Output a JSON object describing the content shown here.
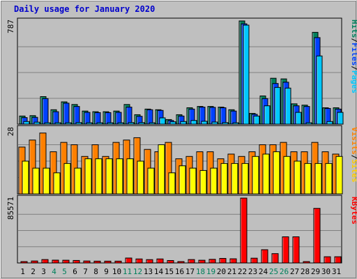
{
  "chart_data": {
    "type": "bar",
    "title": "Daily usage for January 2020",
    "categories": [
      "1",
      "2",
      "3",
      "4",
      "5",
      "6",
      "7",
      "8",
      "9",
      "10",
      "11",
      "12",
      "13",
      "14",
      "15",
      "16",
      "17",
      "18",
      "19",
      "20",
      "21",
      "22",
      "23",
      "24",
      "25",
      "26",
      "27",
      "28",
      "29",
      "30",
      "31"
    ],
    "weekend_days": [
      "4",
      "5",
      "11",
      "12",
      "18",
      "19",
      "25",
      "26"
    ],
    "panels": [
      {
        "name": "requests",
        "ymax_label": "787",
        "ymax": 787,
        "series": [
          {
            "name": "Hits",
            "color": "#00805c",
            "values": [
              62,
              65,
              210,
              110,
              170,
              150,
              100,
              95,
              95,
              100,
              150,
              72,
              115,
              110,
              35,
              72,
              125,
              135,
              135,
              130,
              110,
              787,
              82,
              215,
              350,
              345,
              155,
              145,
              700,
              125,
              125
            ]
          },
          {
            "name": "Files",
            "color": "#0040ff",
            "values": [
              50,
              52,
              195,
              95,
              160,
              135,
              90,
              88,
              88,
              90,
              130,
              60,
              110,
              105,
              28,
              62,
              115,
              130,
              128,
              125,
              100,
              765,
              75,
              195,
              310,
              320,
              140,
              135,
              660,
              120,
              115
            ]
          },
          {
            "name": "Pages",
            "color": "#00c8ff",
            "values": [
              20,
              15,
              10,
              10,
              10,
              12,
              10,
              10,
              8,
              10,
              12,
              12,
              10,
              48,
              18,
              20,
              28,
              22,
              16,
              12,
              8,
              755,
              62,
              140,
              280,
              275,
              90,
              10,
              520,
              20,
              90
            ]
          }
        ],
        "legend": [
          {
            "text": "Hits",
            "color": "#00805c"
          },
          {
            "text": "/",
            "color": "#000000"
          },
          {
            "text": "Files",
            "color": "#0040ff"
          },
          {
            "text": "/",
            "color": "#000000"
          },
          {
            "text": "Pages",
            "color": "#00c8ff"
          }
        ]
      },
      {
        "name": "visits",
        "ymax_label": "28",
        "ymax": 28,
        "series": [
          {
            "name": "Visits",
            "color": "#ff8000",
            "values": [
              20,
              23,
              26,
              18,
              22,
              21,
              16,
              21,
              16,
              22,
              23,
              24,
              19,
              18,
              22,
              15,
              16,
              18,
              18,
              15,
              17,
              16,
              18,
              21,
              21,
              22,
              18,
              18,
              22,
              18,
              17
            ]
          },
          {
            "name": "Sites",
            "color": "#ffff00",
            "values": [
              14,
              11,
              11,
              9,
              13,
              11,
              15,
              15,
              15,
              15,
              15,
              14,
              11,
              21,
              9,
              12,
              11,
              10,
              11,
              13,
              13,
              13,
              16,
              17,
              18,
              16,
              14,
              13,
              13,
              13,
              16
            ]
          }
        ],
        "legend": [
          {
            "text": "Visits",
            "color": "#ff8000"
          },
          {
            "text": "/",
            "color": "#000000"
          },
          {
            "text": "Sites",
            "color": "#ffcc00"
          }
        ]
      },
      {
        "name": "kbytes",
        "ymax_label": "85571",
        "ymax": 85571,
        "series": [
          {
            "name": "KBytes",
            "color": "#ff0000",
            "values": [
              1800,
              2600,
              4500,
              3700,
              3600,
              3300,
              2600,
              2400,
              2400,
              2400,
              6500,
              5300,
              4400,
              5300,
              3200,
              1300,
              4500,
              3600,
              4800,
              6000,
              5500,
              85571,
              6300,
              17500,
              12300,
              34500,
              34500,
              1600,
              72000,
              8200,
              8200
            ]
          }
        ],
        "legend": [
          {
            "text": "KBytes",
            "color": "#ff0000"
          }
        ]
      }
    ]
  }
}
